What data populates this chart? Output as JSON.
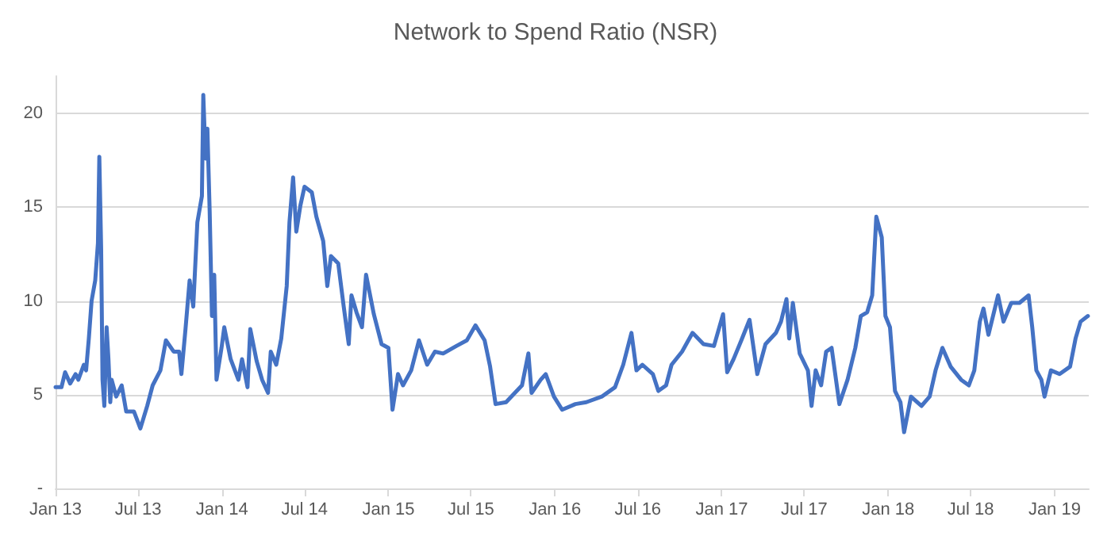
{
  "chart_data": {
    "type": "line",
    "title": "Network to Spend Ratio (NSR)",
    "x": [
      "2013-01-01",
      "2013-01-14",
      "2013-01-22",
      "2013-02-02",
      "2013-02-14",
      "2013-02-20",
      "2013-03-04",
      "2013-03-09",
      "2013-03-15",
      "2013-03-21",
      "2013-03-29",
      "2013-04-04",
      "2013-04-07",
      "2013-04-11",
      "2013-04-14",
      "2013-04-18",
      "2013-04-23",
      "2013-04-27",
      "2013-05-01",
      "2013-05-04",
      "2013-05-14",
      "2013-05-26",
      "2013-06-05",
      "2013-06-22",
      "2013-07-06",
      "2013-07-21",
      "2013-08-02",
      "2013-08-19",
      "2013-08-31",
      "2013-09-17",
      "2013-09-29",
      "2013-10-04",
      "2013-10-13",
      "2013-10-22",
      "2013-10-30",
      "2013-11-08",
      "2013-11-18",
      "2013-11-21",
      "2013-11-26",
      "2013-11-30",
      "2013-12-05",
      "2013-12-10",
      "2013-12-15",
      "2013-12-20",
      "2013-12-31",
      "2014-01-06",
      "2014-01-20",
      "2014-02-06",
      "2014-02-14",
      "2014-02-26",
      "2014-03-04",
      "2014-03-18",
      "2014-03-30",
      "2014-04-12",
      "2014-04-18",
      "2014-04-30",
      "2014-05-11",
      "2014-05-23",
      "2014-05-29",
      "2014-06-06",
      "2014-06-13",
      "2014-06-22",
      "2014-07-01",
      "2014-07-17",
      "2014-07-27",
      "2014-08-11",
      "2014-08-20",
      "2014-08-28",
      "2014-09-13",
      "2014-09-25",
      "2014-10-06",
      "2014-10-12",
      "2014-10-23",
      "2014-11-04",
      "2014-11-13",
      "2014-11-30",
      "2014-12-17",
      "2015-01-01",
      "2015-01-10",
      "2015-01-22",
      "2015-02-02",
      "2015-02-20",
      "2015-03-09",
      "2015-03-27",
      "2015-04-13",
      "2015-05-01",
      "2015-05-30",
      "2015-06-22",
      "2015-07-11",
      "2015-07-31",
      "2015-08-12",
      "2015-08-24",
      "2015-09-16",
      "2015-10-21",
      "2015-11-04",
      "2015-11-11",
      "2015-12-01",
      "2015-12-12",
      "2015-12-30",
      "2016-01-17",
      "2016-02-15",
      "2016-03-10",
      "2016-04-13",
      "2016-05-12",
      "2016-05-30",
      "2016-06-17",
      "2016-06-28",
      "2016-07-11",
      "2016-08-03",
      "2016-08-15",
      "2016-09-01",
      "2016-09-13",
      "2016-10-06",
      "2016-10-29",
      "2016-11-22",
      "2016-12-15",
      "2017-01-04",
      "2017-01-13",
      "2017-01-27",
      "2017-02-13",
      "2017-03-03",
      "2017-03-20",
      "2017-04-07",
      "2017-04-30",
      "2017-05-11",
      "2017-05-23",
      "2017-05-29",
      "2017-06-06",
      "2017-06-21",
      "2017-07-09",
      "2017-07-17",
      "2017-07-26",
      "2017-08-07",
      "2017-08-18",
      "2017-08-30",
      "2017-09-16",
      "2017-10-04",
      "2017-10-21",
      "2017-11-02",
      "2017-11-16",
      "2017-11-27",
      "2017-12-06",
      "2017-12-18",
      "2017-12-26",
      "2018-01-05",
      "2018-01-16",
      "2018-01-28",
      "2018-02-05",
      "2018-02-20",
      "2018-03-15",
      "2018-04-02",
      "2018-04-15",
      "2018-04-30",
      "2018-05-18",
      "2018-06-10",
      "2018-06-27",
      "2018-07-09",
      "2018-07-21",
      "2018-07-29",
      "2018-08-09",
      "2018-08-30",
      "2018-09-11",
      "2018-09-28",
      "2018-10-16",
      "2018-11-05",
      "2018-11-13",
      "2018-11-22",
      "2018-12-03",
      "2018-12-10",
      "2018-12-24",
      "2019-01-12",
      "2019-02-04",
      "2019-02-16",
      "2019-02-27",
      "2019-03-15"
    ],
    "series": [
      {
        "color": "#4472c4",
        "values": [
          5.4,
          5.4,
          6.2,
          5.6,
          6.1,
          5.8,
          6.6,
          6.3,
          8.0,
          10.0,
          11.1,
          13.1,
          17.7,
          12.8,
          5.8,
          4.4,
          8.6,
          6.9,
          4.6,
          5.8,
          4.9,
          5.5,
          4.1,
          4.1,
          3.2,
          4.4,
          5.5,
          6.3,
          7.9,
          7.3,
          7.3,
          6.1,
          8.5,
          11.1,
          9.7,
          14.2,
          15.6,
          21.0,
          17.6,
          19.2,
          14.8,
          9.2,
          11.4,
          5.8,
          7.5,
          8.6,
          6.9,
          5.8,
          6.9,
          5.4,
          8.5,
          6.8,
          5.8,
          5.1,
          7.3,
          6.6,
          8.0,
          10.8,
          14.2,
          16.6,
          13.7,
          15.1,
          16.1,
          15.8,
          14.5,
          13.2,
          10.8,
          12.4,
          12.0,
          9.7,
          7.7,
          10.3,
          9.4,
          8.6,
          11.4,
          9.3,
          7.7,
          7.5,
          4.2,
          6.1,
          5.5,
          6.3,
          7.9,
          6.6,
          7.3,
          7.2,
          7.6,
          7.9,
          8.7,
          7.9,
          6.5,
          4.5,
          4.6,
          5.5,
          7.2,
          5.1,
          5.8,
          6.1,
          4.9,
          4.2,
          4.5,
          4.6,
          4.9,
          5.4,
          6.6,
          8.3,
          6.3,
          6.6,
          6.1,
          5.2,
          5.5,
          6.6,
          7.3,
          8.3,
          7.7,
          7.6,
          9.3,
          6.2,
          6.9,
          7.9,
          9.0,
          6.1,
          7.7,
          8.3,
          8.9,
          10.1,
          8.0,
          9.9,
          7.2,
          6.3,
          4.4,
          6.3,
          5.5,
          7.3,
          7.5,
          4.5,
          5.8,
          7.5,
          9.2,
          9.4,
          10.3,
          14.5,
          13.4,
          9.2,
          8.6,
          5.2,
          4.6,
          3.0,
          4.9,
          4.4,
          4.9,
          6.3,
          7.5,
          6.5,
          5.8,
          5.5,
          6.3,
          8.9,
          9.6,
          8.2,
          10.3,
          8.9,
          9.9,
          9.9,
          10.3,
          8.6,
          6.3,
          5.8,
          4.9,
          6.3,
          6.1,
          6.5,
          8.0,
          8.9,
          9.2
        ]
      }
    ],
    "xlim": [
      "2013-01-01",
      "2019-03-17"
    ],
    "xticks": [
      {
        "value": "2013-01-01",
        "label": "Jan 13"
      },
      {
        "value": "2013-07-01",
        "label": "Jul 13"
      },
      {
        "value": "2014-01-01",
        "label": "Jan 14"
      },
      {
        "value": "2014-07-01",
        "label": "Jul 14"
      },
      {
        "value": "2015-01-01",
        "label": "Jan 15"
      },
      {
        "value": "2015-07-01",
        "label": "Jul 15"
      },
      {
        "value": "2016-01-01",
        "label": "Jan 16"
      },
      {
        "value": "2016-07-01",
        "label": "Jul 16"
      },
      {
        "value": "2017-01-01",
        "label": "Jan 17"
      },
      {
        "value": "2017-07-01",
        "label": "Jul 17"
      },
      {
        "value": "2018-01-01",
        "label": "Jan 18"
      },
      {
        "value": "2018-07-01",
        "label": "Jul 18"
      },
      {
        "value": "2019-01-01",
        "label": "Jan 19"
      }
    ],
    "ylim": [
      0,
      22
    ],
    "yticks": [
      {
        "value": 0,
        "label": "-"
      },
      5,
      10,
      15,
      20
    ],
    "grid": "y",
    "marker": "none",
    "line_style": "solid"
  }
}
